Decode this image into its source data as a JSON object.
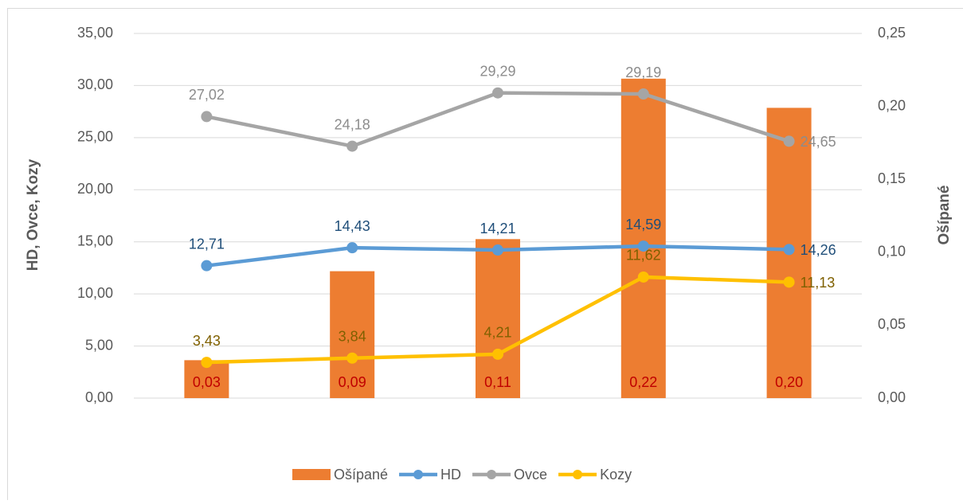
{
  "chart_data": {
    "type": "bar",
    "categories": [
      null,
      null,
      null,
      null,
      null
    ],
    "y_label": "HD, Ovce, Kozy",
    "y2_label": "Ošípané",
    "ylim": [
      0,
      35
    ],
    "yticks": [
      {
        "value": 0,
        "label": "0,00"
      },
      {
        "value": 5,
        "label": "5,00"
      },
      {
        "value": 10,
        "label": "10,00"
      },
      {
        "value": 15,
        "label": "15,00"
      },
      {
        "value": 20,
        "label": "20,00"
      },
      {
        "value": 25,
        "label": "25,00"
      },
      {
        "value": 30,
        "label": "30,00"
      },
      {
        "value": 35,
        "label": "35,00"
      }
    ],
    "y2lim": [
      0,
      0.25
    ],
    "y2ticks": [
      {
        "value": 0,
        "label": "0,00"
      },
      {
        "value": 0.05,
        "label": "0,05"
      },
      {
        "value": 0.1,
        "label": "0,10"
      },
      {
        "value": 0.15,
        "label": "0,15"
      },
      {
        "value": 0.2,
        "label": "0,20"
      },
      {
        "value": 0.25,
        "label": "0,25"
      }
    ],
    "grid": true,
    "legend": "bottom",
    "series": [
      {
        "name": "Ošípané",
        "type": "bar",
        "axis": "y2",
        "color": "#ed7d31",
        "label_color": "#c00000",
        "values": [
          0.026,
          0.087,
          0.109,
          0.219,
          0.199
        ],
        "value_labels": [
          "0,03",
          "0,09",
          "0,11",
          "0,22",
          "0,20"
        ]
      },
      {
        "name": "HD",
        "type": "line",
        "color": "#5b9bd5",
        "label_color": "#1f4e79",
        "values": [
          12.71,
          14.43,
          14.21,
          14.59,
          14.26
        ],
        "value_labels": [
          "12,71",
          "14,43",
          "14,21",
          "14,59",
          "14,26"
        ]
      },
      {
        "name": "Ovce",
        "type": "line",
        "color": "#a5a5a5",
        "label_color": "#8c8c8c",
        "values": [
          27.02,
          24.18,
          29.29,
          29.19,
          24.65
        ],
        "value_labels": [
          "27,02",
          "24,18",
          "29,29",
          "29,19",
          "24,65"
        ]
      },
      {
        "name": "Kozy",
        "type": "line",
        "color": "#ffc000",
        "label_color": "#7f6000",
        "values": [
          3.43,
          3.84,
          4.21,
          11.62,
          11.13
        ],
        "value_labels": [
          "3,43",
          "3,84",
          "4,21",
          "11,62",
          "11,13"
        ]
      }
    ]
  }
}
